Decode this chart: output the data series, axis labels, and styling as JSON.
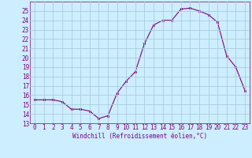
{
  "x": [
    0,
    1,
    2,
    3,
    4,
    5,
    6,
    7,
    8,
    9,
    10,
    11,
    12,
    13,
    14,
    15,
    16,
    17,
    18,
    19,
    20,
    21,
    22,
    23
  ],
  "y": [
    15.5,
    15.5,
    15.5,
    15.3,
    14.5,
    14.5,
    14.3,
    13.5,
    13.8,
    16.2,
    17.5,
    18.5,
    21.5,
    23.5,
    24.0,
    24.0,
    25.2,
    25.3,
    25.0,
    24.6,
    23.8,
    20.2,
    19.0,
    16.5
  ],
  "line_color": "#800080",
  "marker": "s",
  "marker_size": 2,
  "bg_color": "#cceeff",
  "grid_color": "#aaccdd",
  "xlabel": "Windchill (Refroidissement éolien,°C)",
  "xlabel_color": "#800080",
  "tick_color": "#800080",
  "ylim": [
    13,
    26
  ],
  "xlim": [
    -0.5,
    23.5
  ],
  "yticks": [
    13,
    14,
    15,
    16,
    17,
    18,
    19,
    20,
    21,
    22,
    23,
    24,
    25
  ],
  "xticks": [
    0,
    1,
    2,
    3,
    4,
    5,
    6,
    7,
    8,
    9,
    10,
    11,
    12,
    13,
    14,
    15,
    16,
    17,
    18,
    19,
    20,
    21,
    22,
    23
  ],
  "label_fontsize": 5.5,
  "tick_fontsize": 5.5
}
